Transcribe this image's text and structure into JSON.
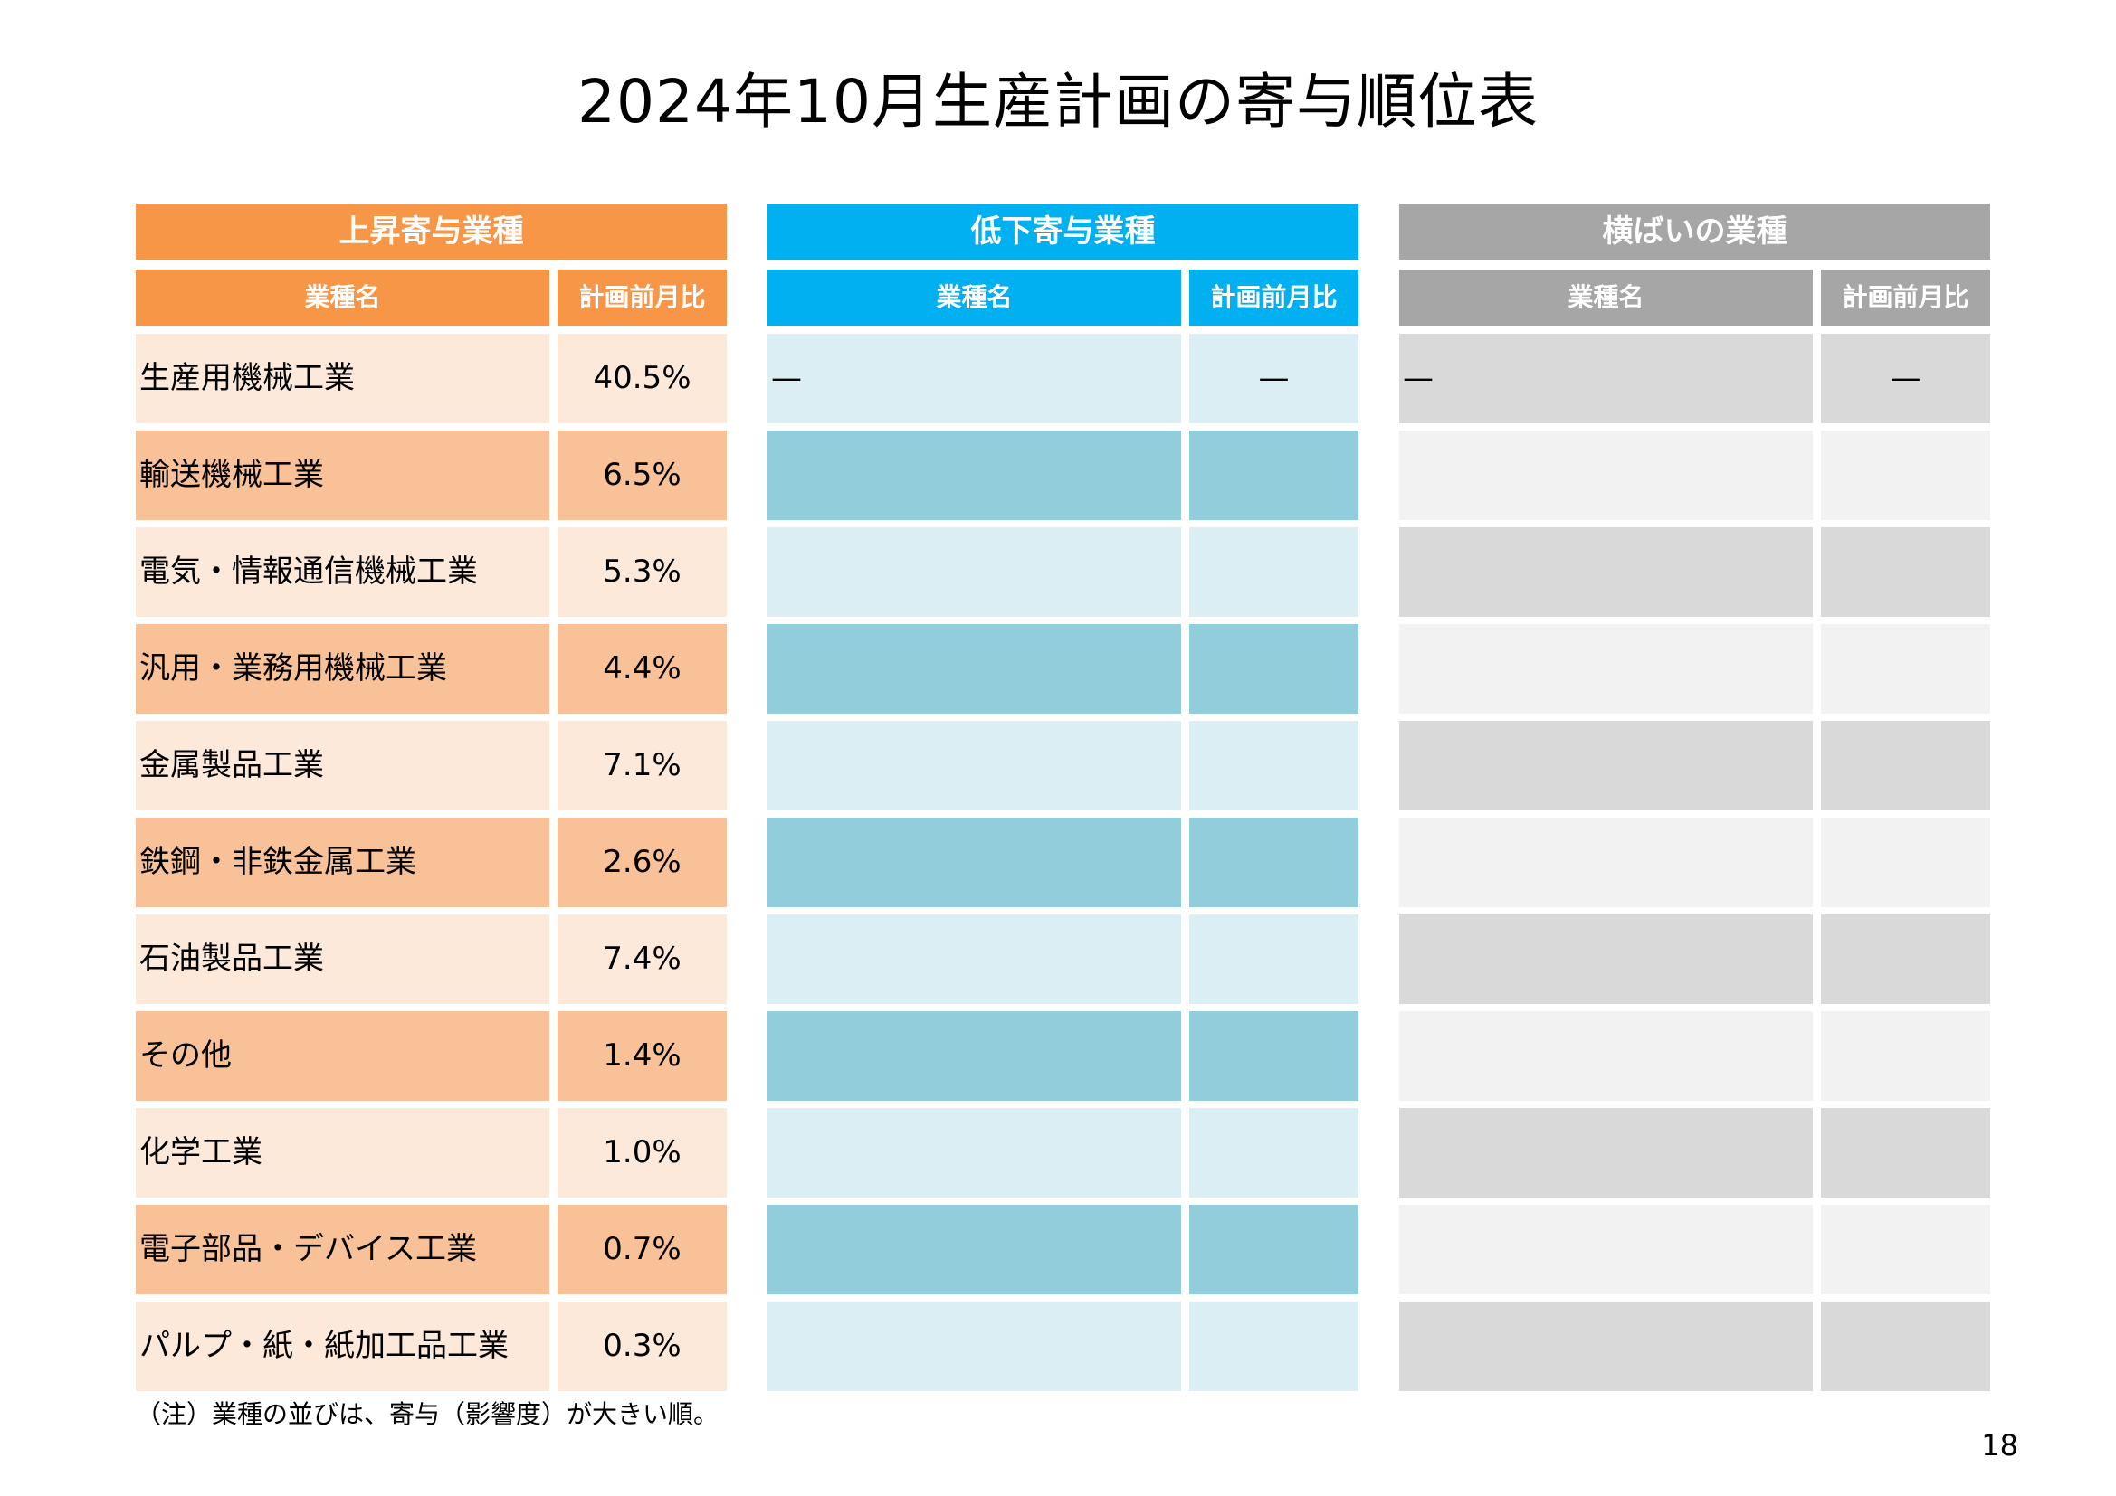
{
  "title": "2024年10月生産計画の寄与順位表",
  "sections": [
    {
      "id": "up",
      "header": "上昇寄与業種",
      "col_name": "業種名",
      "col_value": "計画前月比",
      "colors": {
        "header": "#F79646",
        "row_light": "#FCE9DA",
        "row_dark": "#F9C197"
      },
      "rows": [
        {
          "name": "生産用機械工業",
          "value": "40.5%"
        },
        {
          "name": "輸送機械工業",
          "value": "6.5%"
        },
        {
          "name": "電気・情報通信機械工業",
          "value": "5.3%"
        },
        {
          "name": "汎用・業務用機械工業",
          "value": "4.4%"
        },
        {
          "name": "金属製品工業",
          "value": "7.1%"
        },
        {
          "name": "鉄鋼・非鉄金属工業",
          "value": "2.6%"
        },
        {
          "name": "石油製品工業",
          "value": "7.4%"
        },
        {
          "name": "その他",
          "value": "1.4%"
        },
        {
          "name": "化学工業",
          "value": "1.0%"
        },
        {
          "name": "電子部品・デバイス工業",
          "value": "0.7%"
        },
        {
          "name": "パルプ・紙・紙加工品工業",
          "value": "0.3%"
        }
      ]
    },
    {
      "id": "down",
      "header": "低下寄与業種",
      "col_name": "業種名",
      "col_value": "計画前月比",
      "colors": {
        "header": "#00B0F0",
        "row_light": "#DAEEF3",
        "row_dark": "#92CDDC"
      },
      "rows": [
        {
          "name": "—",
          "value": "—"
        },
        {
          "name": "",
          "value": ""
        },
        {
          "name": "",
          "value": ""
        },
        {
          "name": "",
          "value": ""
        },
        {
          "name": "",
          "value": ""
        },
        {
          "name": "",
          "value": ""
        },
        {
          "name": "",
          "value": ""
        },
        {
          "name": "",
          "value": ""
        },
        {
          "name": "",
          "value": ""
        },
        {
          "name": "",
          "value": ""
        },
        {
          "name": "",
          "value": ""
        }
      ]
    },
    {
      "id": "flat",
      "header": "横ばいの業種",
      "col_name": "業種名",
      "col_value": "計画前月比",
      "colors": {
        "header": "#A6A6A6",
        "row_light": "#D9D9D9",
        "row_dark": "#F2F2F2"
      },
      "rows": [
        {
          "name": "—",
          "value": "—"
        },
        {
          "name": "",
          "value": ""
        },
        {
          "name": "",
          "value": ""
        },
        {
          "name": "",
          "value": ""
        },
        {
          "name": "",
          "value": ""
        },
        {
          "name": "",
          "value": ""
        },
        {
          "name": "",
          "value": ""
        },
        {
          "name": "",
          "value": ""
        },
        {
          "name": "",
          "value": ""
        },
        {
          "name": "",
          "value": ""
        },
        {
          "name": "",
          "value": ""
        }
      ]
    }
  ],
  "note": "（注）業種の並びは、寄与（影響度）が大きい順。",
  "page_number": "18"
}
